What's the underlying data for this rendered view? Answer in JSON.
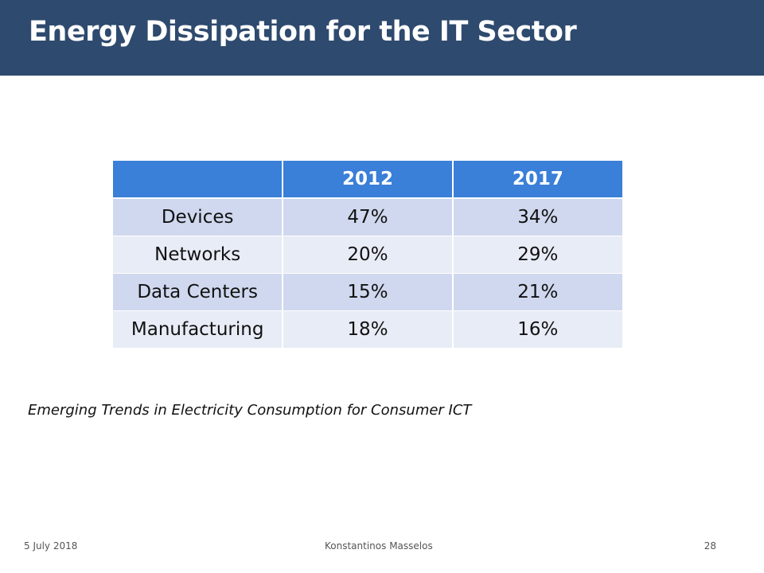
{
  "slide": {
    "title": "Energy Dissipation for the IT Sector",
    "colors": {
      "title_bar": "#2e4a6e",
      "table_header": "#3a7fd8",
      "row_band_dark": "#cfd8ee",
      "row_band_light": "#e8ecf6"
    }
  },
  "table": {
    "headers": [
      "",
      "2012",
      "2017"
    ],
    "rows": [
      {
        "label": "Devices",
        "y2012": "47%",
        "y2017": "34%"
      },
      {
        "label": "Networks",
        "y2012": "20%",
        "y2017": "29%"
      },
      {
        "label": "Data Centers",
        "y2012": "15%",
        "y2017": "21%"
      },
      {
        "label": "Manufacturing",
        "y2012": "18%",
        "y2017": "16%"
      }
    ]
  },
  "caption": "Emerging Trends in Electricity Consumption for Consumer ICT",
  "footer": {
    "date": "5 July 2018",
    "author": "Konstantinos Masselos",
    "page": "28"
  }
}
